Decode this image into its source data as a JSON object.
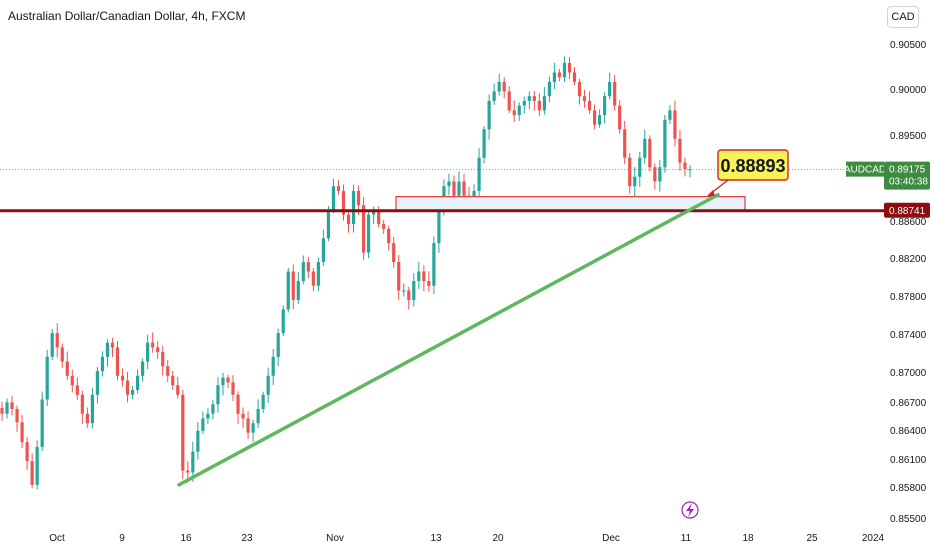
{
  "header": {
    "title": "Australian Dollar/Canadian Dollar, 4h, FXCM",
    "currency_button": "CAD"
  },
  "chart_data": {
    "type": "candlestick",
    "symbol": "AUDCAD",
    "y_ticks": [
      "0.90500",
      "0.90000",
      "0.89500",
      "0.88600",
      "0.88200",
      "0.87800",
      "0.87400",
      "0.87000",
      "0.86700",
      "0.86400",
      "0.86100",
      "0.85800",
      "0.85500"
    ],
    "x_ticks": [
      "Oct",
      "9",
      "16",
      "23",
      "Nov",
      "13",
      "20",
      "Dec",
      "11",
      "18",
      "25",
      "2024"
    ],
    "ylim": [
      0.8548,
      0.9065
    ],
    "series": [
      {
        "name": "AUDCAD",
        "values": [
          0.866,
          0.8672,
          0.8665,
          0.8651,
          0.863,
          0.861,
          0.8585,
          0.8625,
          0.8675,
          0.872,
          0.8745,
          0.873,
          0.8715,
          0.87,
          0.869,
          0.868,
          0.866,
          0.865,
          0.868,
          0.8705,
          0.872,
          0.8735,
          0.873,
          0.87,
          0.8695,
          0.868,
          0.8685,
          0.87,
          0.8715,
          0.8735,
          0.873,
          0.8725,
          0.871,
          0.87,
          0.869,
          0.868,
          0.86,
          0.8598,
          0.862,
          0.8642,
          0.8655,
          0.866,
          0.867,
          0.869,
          0.8698,
          0.8693,
          0.868,
          0.866,
          0.8655,
          0.864,
          0.865,
          0.8665,
          0.868,
          0.87,
          0.872,
          0.8745,
          0.877,
          0.881,
          0.878,
          0.88,
          0.882,
          0.881,
          0.8795,
          0.882,
          0.8845,
          0.8875,
          0.89,
          0.8895,
          0.887,
          0.886,
          0.8895,
          0.888,
          0.883,
          0.887,
          0.8875,
          0.886,
          0.8855,
          0.884,
          0.882,
          0.879,
          0.879,
          0.878,
          0.88,
          0.881,
          0.88,
          0.8795,
          0.884,
          0.888,
          0.89,
          0.8905,
          0.889,
          0.8905,
          0.889,
          0.8885,
          0.8895,
          0.893,
          0.896,
          0.899,
          0.9,
          0.901,
          0.9,
          0.898,
          0.8975,
          0.8985,
          0.899,
          0.8995,
          0.899,
          0.898,
          0.8995,
          0.901,
          0.902,
          0.9015,
          0.903,
          0.902,
          0.901,
          0.8995,
          0.899,
          0.898,
          0.8965,
          0.8975,
          0.8995,
          0.901,
          0.8985,
          0.896,
          0.893,
          0.89,
          0.891,
          0.893,
          0.895,
          0.892,
          0.8905,
          0.892,
          0.897,
          0.898,
          0.895,
          0.8925,
          0.8918,
          0.8918
        ]
      },
      {
        "name": "Trendline",
        "values": [
          0.8585,
          0.8891
        ]
      }
    ],
    "price_label": {
      "symbol": "AUDCAD",
      "value": "0.89175",
      "countdown": "03:40:38"
    },
    "support_level": {
      "value": "0.88741"
    },
    "callout": {
      "value": "0.88893"
    },
    "colors": {
      "up": "#26a69a",
      "down": "#ef5350",
      "trendline": "#5fb85f",
      "support": "#8b0d0d",
      "zone_fill": "#e8f1fa",
      "zone_border": "#e33b3b",
      "callout_fill": "#f7f25a",
      "callout_border": "#d62424",
      "last_price": "#3d8b40"
    }
  }
}
